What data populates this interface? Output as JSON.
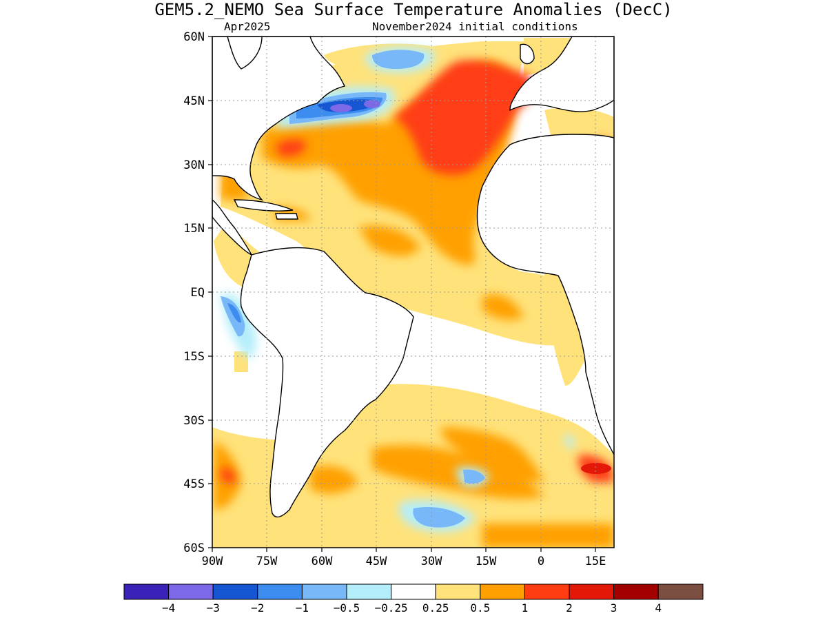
{
  "title": "GEM5.2_NEMO Sea Surface Temperature Anomalies (DecC)",
  "subtitle_left": "Apr2025",
  "subtitle_right": "November2024 initial conditions",
  "axes": {
    "lon_range": [
      -90,
      20
    ],
    "lat_range": [
      -60,
      60
    ],
    "lat_ticks": [
      {
        "value": 60,
        "label": "60N"
      },
      {
        "value": 45,
        "label": "45N"
      },
      {
        "value": 30,
        "label": "30N"
      },
      {
        "value": 15,
        "label": "15N"
      },
      {
        "value": 0,
        "label": "EQ"
      },
      {
        "value": -15,
        "label": "15S"
      },
      {
        "value": -30,
        "label": "30S"
      },
      {
        "value": -45,
        "label": "45S"
      },
      {
        "value": -60,
        "label": "60S"
      }
    ],
    "lon_ticks": [
      {
        "value": -90,
        "label": "90W"
      },
      {
        "value": -75,
        "label": "75W"
      },
      {
        "value": -60,
        "label": "60W"
      },
      {
        "value": -45,
        "label": "45W"
      },
      {
        "value": -30,
        "label": "30W"
      },
      {
        "value": -15,
        "label": "15W"
      },
      {
        "value": 0,
        "label": "0"
      },
      {
        "value": 15,
        "label": "15E"
      }
    ],
    "grid": "dotted"
  },
  "colorbar": {
    "colors": [
      "#3a22b8",
      "#7b69e8",
      "#1756d2",
      "#3d8df0",
      "#78b8f8",
      "#b4eefa",
      "#ffffff",
      "#ffe27a",
      "#ffa000",
      "#ff3c12",
      "#e31808",
      "#a30000",
      "#7a4e40"
    ],
    "labels": [
      "−4",
      "−3",
      "−2",
      "−1",
      "−0.5",
      "−0.25",
      "0.25",
      "0.5",
      "1",
      "2",
      "3",
      "4"
    ]
  },
  "chart_data": {
    "type": "heatmap",
    "variable": "Sea Surface Temperature Anomaly",
    "units": "DecC",
    "region": "Atlantic Ocean",
    "lon_range": [
      -90,
      20
    ],
    "lat_range": [
      -60,
      60
    ],
    "levels": [
      -4,
      -3,
      -2,
      -1,
      -0.5,
      -0.25,
      0.25,
      0.5,
      1,
      2,
      3,
      4
    ],
    "features": [
      {
        "lon": [
          -20,
          -5
        ],
        "lat": [
          25,
          55
        ],
        "value": 1.5
      },
      {
        "lon": [
          -60,
          -40
        ],
        "lat": [
          42,
          48
        ],
        "value": -3
      },
      {
        "lon": [
          -50,
          -35
        ],
        "lat": [
          50,
          58
        ],
        "value": -0.5
      },
      {
        "lon": [
          -88,
          -80
        ],
        "lat": [
          -12,
          0
        ],
        "value": -1
      },
      {
        "lon": [
          5,
          20
        ],
        "lat": [
          -45,
          -38
        ],
        "value": 2
      },
      {
        "lon": [
          -35,
          -20
        ],
        "lat": [
          -58,
          -48
        ],
        "value": -1
      },
      {
        "lon": [
          -60,
          -20
        ],
        "lat": [
          -5,
          30
        ],
        "value": 0.4
      },
      {
        "lon": [
          -50,
          20
        ],
        "lat": [
          -50,
          -30
        ],
        "value": 0.7
      }
    ]
  }
}
